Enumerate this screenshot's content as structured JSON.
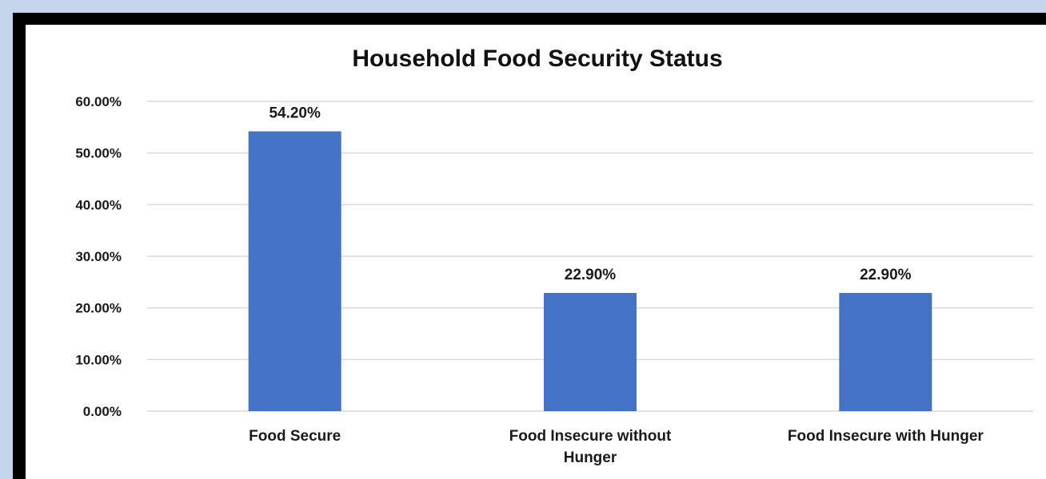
{
  "chart_data": {
    "type": "bar",
    "title": "Household Food Security Status",
    "categories": [
      [
        "Food Secure"
      ],
      [
        "Food Insecure without",
        "Hunger"
      ],
      [
        "Food Insecure with Hunger"
      ]
    ],
    "values": [
      54.2,
      22.9,
      22.9
    ],
    "data_labels": [
      "54.20%",
      "22.90%",
      "22.90%"
    ],
    "ylim": [
      0,
      60
    ],
    "yticks": [
      0,
      10,
      20,
      30,
      40,
      50,
      60
    ],
    "ytick_labels": [
      "0.00%",
      "10.00%",
      "20.00%",
      "30.00%",
      "40.00%",
      "50.00%",
      "60.00%"
    ],
    "xlabel": "",
    "ylabel": "",
    "grid": true,
    "legend": "none",
    "bar_color": "#4472c4",
    "grid_color": "#d9d9d9"
  }
}
